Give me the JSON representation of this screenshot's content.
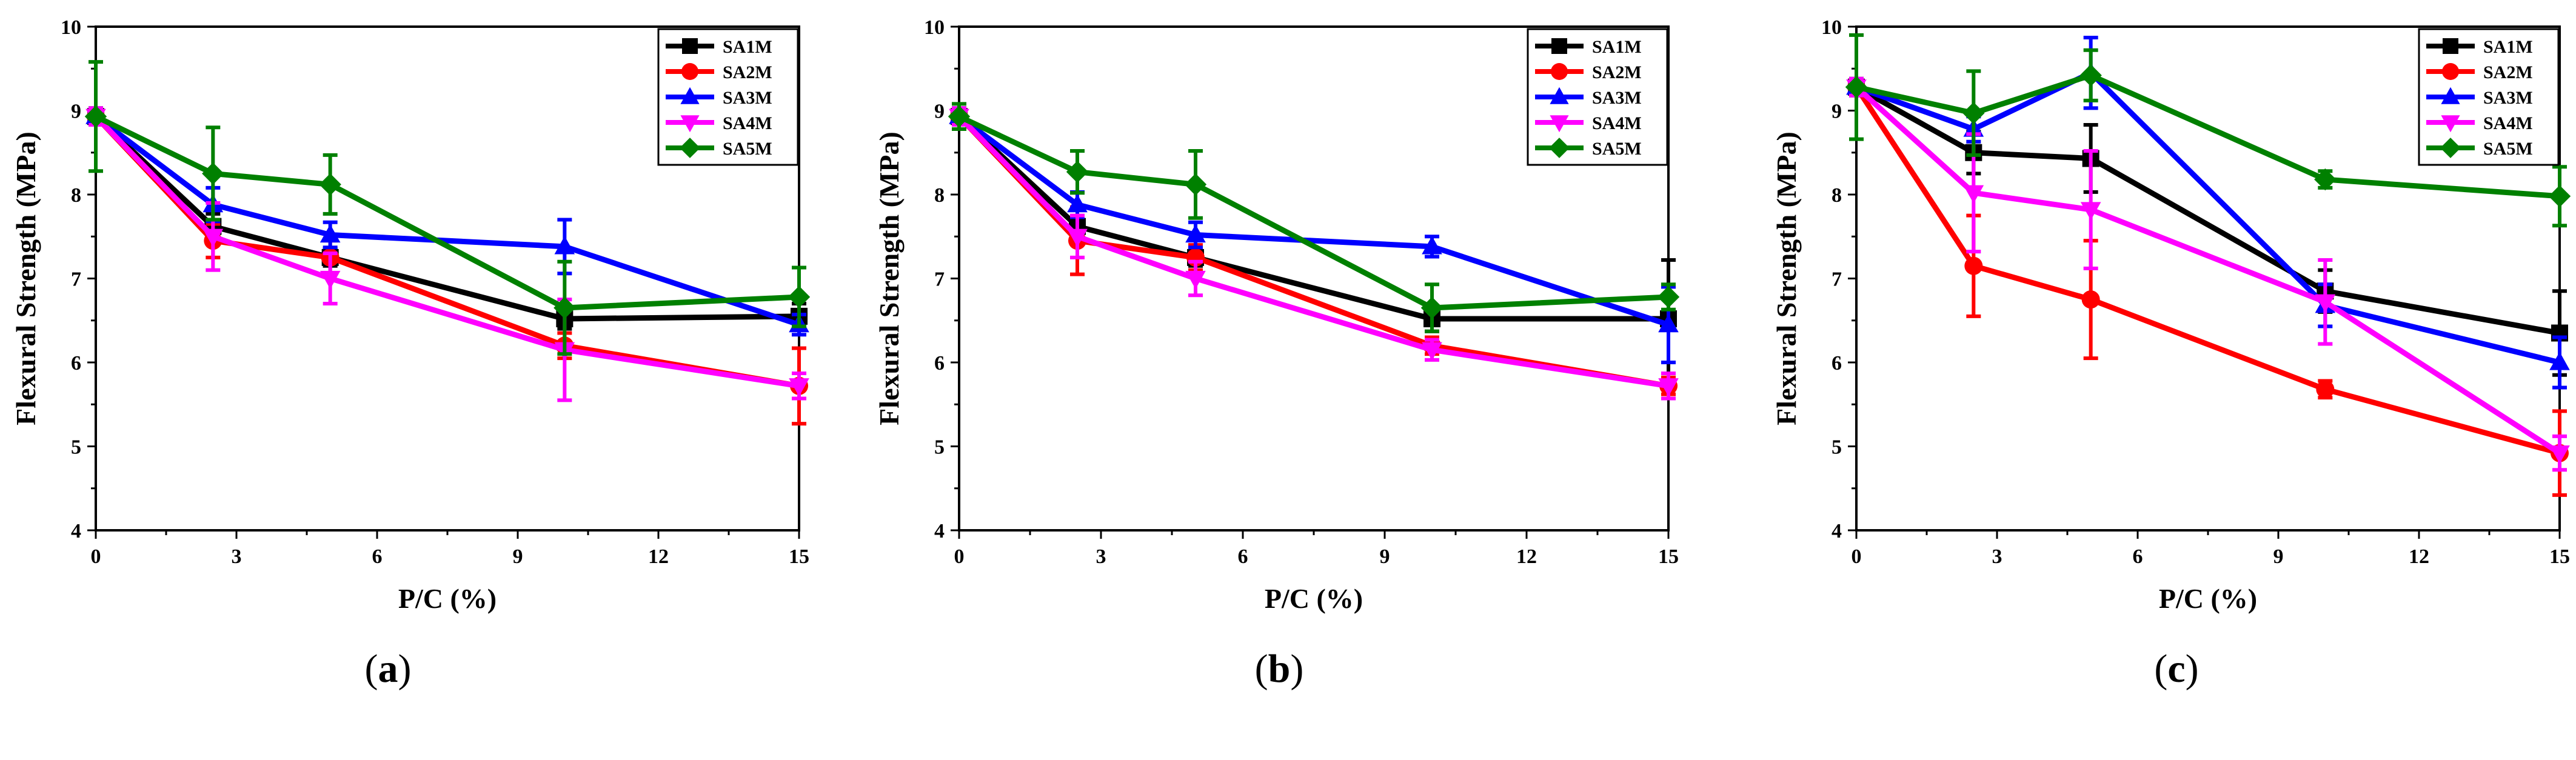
{
  "chart_data": [
    {
      "type": "line",
      "caption_open": "(",
      "caption_letter": "a",
      "caption_close": ")",
      "title": "",
      "xlabel": "P/C (%)",
      "ylabel": "Flexural  Strength (MPa)",
      "xlim": [
        0,
        15
      ],
      "ylim": [
        4,
        10
      ],
      "xticks": [
        0,
        3,
        6,
        9,
        12,
        15
      ],
      "yticks": [
        4,
        5,
        6,
        7,
        8,
        9,
        10
      ],
      "x": [
        0,
        2.5,
        5,
        10,
        15
      ],
      "legend_position": "top-right",
      "series": [
        {
          "name": "SA1M",
          "color": "#000000",
          "marker": "square",
          "values": [
            8.93,
            7.62,
            7.25,
            6.52,
            6.55
          ],
          "errors": [
            0.1,
            0.15,
            0.1,
            0.12,
            0.15
          ]
        },
        {
          "name": "SA2M",
          "color": "#ff0000",
          "marker": "circle",
          "values": [
            8.93,
            7.45,
            7.25,
            6.2,
            5.72
          ],
          "errors": [
            0.1,
            0.2,
            0.2,
            0.15,
            0.45
          ]
        },
        {
          "name": "SA3M",
          "color": "#0000ff",
          "marker": "triangle-up",
          "values": [
            8.93,
            7.88,
            7.52,
            7.38,
            6.45
          ],
          "errors": [
            0.1,
            0.2,
            0.15,
            0.32,
            0.12
          ]
        },
        {
          "name": "SA4M",
          "color": "#ff00ff",
          "marker": "triangle-down",
          "values": [
            8.93,
            7.5,
            7.0,
            6.15,
            5.72
          ],
          "errors": [
            0.1,
            0.4,
            0.3,
            0.6,
            0.15
          ]
        },
        {
          "name": "SA5M",
          "color": "#008000",
          "marker": "diamond",
          "values": [
            8.93,
            8.25,
            8.12,
            6.65,
            6.78
          ],
          "errors": [
            0.65,
            0.55,
            0.35,
            0.55,
            0.35
          ]
        }
      ]
    },
    {
      "type": "line",
      "caption_open": "(",
      "caption_letter": "b",
      "caption_close": ")",
      "title": "",
      "xlabel": "P/C (%)",
      "ylabel": "Flexural  Strength (MPa)",
      "xlim": [
        0,
        15
      ],
      "ylim": [
        4,
        10
      ],
      "xticks": [
        0,
        3,
        6,
        9,
        12,
        15
      ],
      "yticks": [
        4,
        5,
        6,
        7,
        8,
        9,
        10
      ],
      "x": [
        0,
        2.5,
        5,
        10,
        15
      ],
      "legend_position": "top-right",
      "series": [
        {
          "name": "SA1M",
          "color": "#000000",
          "marker": "square",
          "values": [
            8.93,
            7.62,
            7.25,
            6.52,
            6.52
          ],
          "errors": [
            0.1,
            0.2,
            0.1,
            0.15,
            0.7
          ]
        },
        {
          "name": "SA2M",
          "color": "#ff0000",
          "marker": "circle",
          "values": [
            8.93,
            7.45,
            7.25,
            6.2,
            5.72
          ],
          "errors": [
            0.1,
            0.4,
            0.15,
            0.1,
            0.1
          ]
        },
        {
          "name": "SA3M",
          "color": "#0000ff",
          "marker": "triangle-up",
          "values": [
            8.93,
            7.88,
            7.52,
            7.38,
            6.45
          ],
          "errors": [
            0.1,
            0.15,
            0.15,
            0.12,
            0.45
          ]
        },
        {
          "name": "SA4M",
          "color": "#ff00ff",
          "marker": "triangle-down",
          "values": [
            8.93,
            7.5,
            7.0,
            6.15,
            5.72
          ],
          "errors": [
            0.1,
            0.25,
            0.2,
            0.12,
            0.15
          ]
        },
        {
          "name": "SA5M",
          "color": "#008000",
          "marker": "diamond",
          "values": [
            8.93,
            8.27,
            8.12,
            6.65,
            6.78
          ],
          "errors": [
            0.15,
            0.25,
            0.4,
            0.28,
            0.15
          ]
        }
      ]
    },
    {
      "type": "line",
      "caption_open": "(",
      "caption_letter": "c",
      "caption_close": ")",
      "title": "",
      "xlabel": "P/C (%)",
      "ylabel": "Flexural  Strength (MPa)",
      "xlim": [
        0,
        15
      ],
      "ylim": [
        4,
        10
      ],
      "xticks": [
        0,
        3,
        6,
        9,
        12,
        15
      ],
      "yticks": [
        4,
        5,
        6,
        7,
        8,
        9,
        10
      ],
      "x": [
        0,
        2.5,
        5,
        10,
        15
      ],
      "legend_position": "top-right",
      "series": [
        {
          "name": "SA1M",
          "color": "#000000",
          "marker": "square",
          "values": [
            9.28,
            8.5,
            8.43,
            6.85,
            6.35
          ],
          "errors": [
            0.1,
            0.25,
            0.4,
            0.25,
            0.5
          ]
        },
        {
          "name": "SA2M",
          "color": "#ff0000",
          "marker": "circle",
          "values": [
            9.28,
            7.15,
            6.75,
            5.68,
            4.92
          ],
          "errors": [
            0.1,
            0.6,
            0.7,
            0.1,
            0.5
          ]
        },
        {
          "name": "SA3M",
          "color": "#0000ff",
          "marker": "triangle-up",
          "values": [
            9.28,
            8.78,
            9.45,
            6.68,
            6.0
          ],
          "errors": [
            0.1,
            0.15,
            0.42,
            0.25,
            0.3
          ]
        },
        {
          "name": "SA4M",
          "color": "#ff00ff",
          "marker": "triangle-down",
          "values": [
            9.28,
            8.02,
            7.82,
            6.72,
            4.92
          ],
          "errors": [
            0.1,
            0.7,
            0.7,
            0.5,
            0.2
          ]
        },
        {
          "name": "SA5M",
          "color": "#008000",
          "marker": "diamond",
          "values": [
            9.28,
            8.97,
            9.42,
            8.18,
            7.98
          ],
          "errors": [
            0.62,
            0.5,
            0.3,
            0.1,
            0.35
          ]
        }
      ]
    }
  ]
}
